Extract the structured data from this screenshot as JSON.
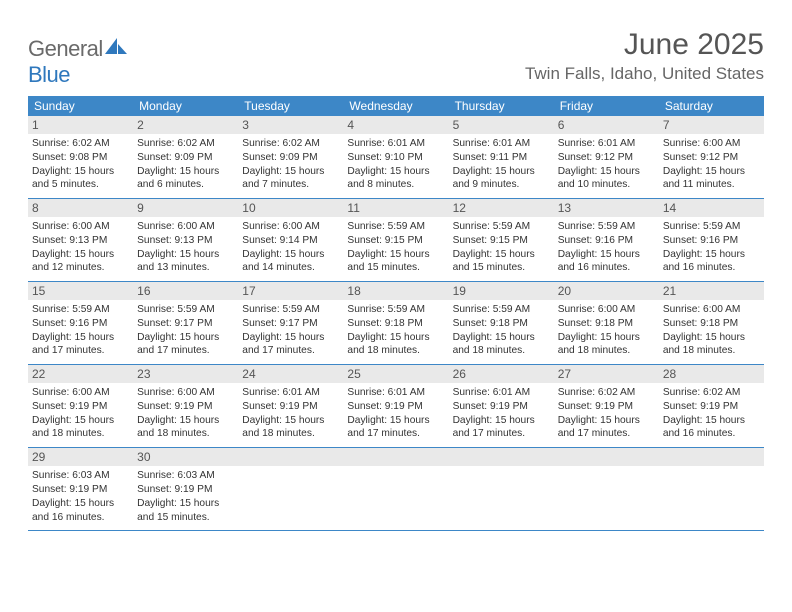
{
  "logo": {
    "text1": "General",
    "text2": "Blue"
  },
  "title": "June 2025",
  "location": "Twin Falls, Idaho, United States",
  "colors": {
    "header_bg": "#3d87c7",
    "header_text": "#ffffff",
    "daynum_bg": "#e9e9e9",
    "daynum_text": "#555555",
    "body_text": "#333333",
    "rule": "#3d87c7",
    "logo_gray": "#6a6a6a",
    "logo_blue": "#2f78bd"
  },
  "weekdays": [
    "Sunday",
    "Monday",
    "Tuesday",
    "Wednesday",
    "Thursday",
    "Friday",
    "Saturday"
  ],
  "days": [
    {
      "n": 1,
      "sunrise": "6:02 AM",
      "sunset": "9:08 PM",
      "daylight": "15 hours and 5 minutes."
    },
    {
      "n": 2,
      "sunrise": "6:02 AM",
      "sunset": "9:09 PM",
      "daylight": "15 hours and 6 minutes."
    },
    {
      "n": 3,
      "sunrise": "6:02 AM",
      "sunset": "9:09 PM",
      "daylight": "15 hours and 7 minutes."
    },
    {
      "n": 4,
      "sunrise": "6:01 AM",
      "sunset": "9:10 PM",
      "daylight": "15 hours and 8 minutes."
    },
    {
      "n": 5,
      "sunrise": "6:01 AM",
      "sunset": "9:11 PM",
      "daylight": "15 hours and 9 minutes."
    },
    {
      "n": 6,
      "sunrise": "6:01 AM",
      "sunset": "9:12 PM",
      "daylight": "15 hours and 10 minutes."
    },
    {
      "n": 7,
      "sunrise": "6:00 AM",
      "sunset": "9:12 PM",
      "daylight": "15 hours and 11 minutes."
    },
    {
      "n": 8,
      "sunrise": "6:00 AM",
      "sunset": "9:13 PM",
      "daylight": "15 hours and 12 minutes."
    },
    {
      "n": 9,
      "sunrise": "6:00 AM",
      "sunset": "9:13 PM",
      "daylight": "15 hours and 13 minutes."
    },
    {
      "n": 10,
      "sunrise": "6:00 AM",
      "sunset": "9:14 PM",
      "daylight": "15 hours and 14 minutes."
    },
    {
      "n": 11,
      "sunrise": "5:59 AM",
      "sunset": "9:15 PM",
      "daylight": "15 hours and 15 minutes."
    },
    {
      "n": 12,
      "sunrise": "5:59 AM",
      "sunset": "9:15 PM",
      "daylight": "15 hours and 15 minutes."
    },
    {
      "n": 13,
      "sunrise": "5:59 AM",
      "sunset": "9:16 PM",
      "daylight": "15 hours and 16 minutes."
    },
    {
      "n": 14,
      "sunrise": "5:59 AM",
      "sunset": "9:16 PM",
      "daylight": "15 hours and 16 minutes."
    },
    {
      "n": 15,
      "sunrise": "5:59 AM",
      "sunset": "9:16 PM",
      "daylight": "15 hours and 17 minutes."
    },
    {
      "n": 16,
      "sunrise": "5:59 AM",
      "sunset": "9:17 PM",
      "daylight": "15 hours and 17 minutes."
    },
    {
      "n": 17,
      "sunrise": "5:59 AM",
      "sunset": "9:17 PM",
      "daylight": "15 hours and 17 minutes."
    },
    {
      "n": 18,
      "sunrise": "5:59 AM",
      "sunset": "9:18 PM",
      "daylight": "15 hours and 18 minutes."
    },
    {
      "n": 19,
      "sunrise": "5:59 AM",
      "sunset": "9:18 PM",
      "daylight": "15 hours and 18 minutes."
    },
    {
      "n": 20,
      "sunrise": "6:00 AM",
      "sunset": "9:18 PM",
      "daylight": "15 hours and 18 minutes."
    },
    {
      "n": 21,
      "sunrise": "6:00 AM",
      "sunset": "9:18 PM",
      "daylight": "15 hours and 18 minutes."
    },
    {
      "n": 22,
      "sunrise": "6:00 AM",
      "sunset": "9:19 PM",
      "daylight": "15 hours and 18 minutes."
    },
    {
      "n": 23,
      "sunrise": "6:00 AM",
      "sunset": "9:19 PM",
      "daylight": "15 hours and 18 minutes."
    },
    {
      "n": 24,
      "sunrise": "6:01 AM",
      "sunset": "9:19 PM",
      "daylight": "15 hours and 18 minutes."
    },
    {
      "n": 25,
      "sunrise": "6:01 AM",
      "sunset": "9:19 PM",
      "daylight": "15 hours and 17 minutes."
    },
    {
      "n": 26,
      "sunrise": "6:01 AM",
      "sunset": "9:19 PM",
      "daylight": "15 hours and 17 minutes."
    },
    {
      "n": 27,
      "sunrise": "6:02 AM",
      "sunset": "9:19 PM",
      "daylight": "15 hours and 17 minutes."
    },
    {
      "n": 28,
      "sunrise": "6:02 AM",
      "sunset": "9:19 PM",
      "daylight": "15 hours and 16 minutes."
    },
    {
      "n": 29,
      "sunrise": "6:03 AM",
      "sunset": "9:19 PM",
      "daylight": "15 hours and 16 minutes."
    },
    {
      "n": 30,
      "sunrise": "6:03 AM",
      "sunset": "9:19 PM",
      "daylight": "15 hours and 15 minutes."
    }
  ],
  "labels": {
    "sunrise": "Sunrise:",
    "sunset": "Sunset:",
    "daylight": "Daylight:"
  },
  "start_weekday": 0,
  "days_in_month": 30
}
